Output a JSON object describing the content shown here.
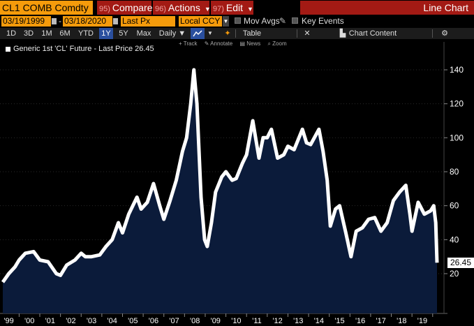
{
  "toolbar": {
    "ticker": "CL1 COMB Comdty",
    "compare_num": "95)",
    "compare": "Compare",
    "actions_num": "96)",
    "actions": "Actions",
    "edit_num": "97)",
    "edit": "Edit",
    "view_title": "Line Chart"
  },
  "range": {
    "start": "03/19/1999",
    "end": "03/18/2020",
    "field": "Last Px",
    "currency": "Local CCY",
    "mov_avgs": "Mov Avgs",
    "key_events": "Key Events"
  },
  "periods": [
    "1D",
    "3D",
    "1M",
    "6M",
    "YTD",
    "1Y",
    "5Y",
    "Max"
  ],
  "selected_period": "1Y",
  "frequency": "Daily ▼",
  "table_label": "Table",
  "chart_content_label": "Chart Content",
  "tools": [
    "Track",
    "Annotate",
    "News",
    "Zoom"
  ],
  "legend": "Generic 1st 'CL' Future - Last Price 26.45",
  "last_price": "26.45",
  "colors": {
    "accent": "#f59b0b",
    "menu": "#a31a14",
    "area": "#0b1b3a",
    "line": "#ffffff"
  },
  "chart_data": {
    "type": "area",
    "title": "Generic 1st 'CL' Future - Last Price",
    "ylim": [
      0,
      155
    ],
    "yticks": [
      20,
      40,
      60,
      80,
      100,
      120,
      140
    ],
    "xlim": [
      1999.21,
      2020.21
    ],
    "xticks": [
      "'99",
      "'00",
      "'01",
      "'02",
      "'03",
      "'04",
      "'05",
      "'06",
      "'07",
      "'08",
      "'09",
      "'10",
      "'11",
      "'12",
      "'13",
      "'14",
      "'15",
      "'16",
      "'17",
      "'18",
      "'19"
    ],
    "x": [
      1999.21,
      1999.5,
      1999.8,
      2000.0,
      2000.3,
      2000.7,
      2001.0,
      2001.4,
      2001.8,
      2002.0,
      2002.3,
      2002.7,
      2003.0,
      2003.2,
      2003.5,
      2003.9,
      2004.2,
      2004.5,
      2004.8,
      2005.0,
      2005.3,
      2005.7,
      2005.9,
      2006.2,
      2006.5,
      2006.8,
      2007.0,
      2007.3,
      2007.6,
      2007.9,
      2008.1,
      2008.3,
      2008.45,
      2008.6,
      2008.8,
      2008.97,
      2009.1,
      2009.3,
      2009.5,
      2009.8,
      2010.0,
      2010.3,
      2010.5,
      2010.8,
      2011.0,
      2011.3,
      2011.6,
      2011.8,
      2012.0,
      2012.2,
      2012.5,
      2012.8,
      2013.0,
      2013.3,
      2013.7,
      2013.9,
      2014.1,
      2014.5,
      2014.7,
      2014.9,
      2015.05,
      2015.3,
      2015.5,
      2015.8,
      2016.05,
      2016.3,
      2016.6,
      2016.9,
      2017.2,
      2017.5,
      2017.8,
      2018.1,
      2018.4,
      2018.7,
      2018.9,
      2019.0,
      2019.3,
      2019.6,
      2019.9,
      2020.05,
      2020.15,
      2020.21
    ],
    "values": [
      15,
      20,
      24,
      28,
      32,
      33,
      28,
      27,
      20,
      19,
      25,
      28,
      32,
      30,
      30,
      31,
      36,
      40,
      50,
      44,
      55,
      65,
      58,
      62,
      73,
      60,
      52,
      63,
      75,
      92,
      100,
      120,
      140,
      120,
      65,
      40,
      36,
      50,
      68,
      77,
      80,
      75,
      76,
      85,
      90,
      110,
      88,
      100,
      100,
      105,
      88,
      90,
      95,
      93,
      105,
      97,
      96,
      105,
      92,
      75,
      48,
      58,
      60,
      44,
      30,
      45,
      47,
      52,
      53,
      45,
      50,
      63,
      68,
      72,
      55,
      45,
      62,
      55,
      57,
      60,
      50,
      26.45
    ],
    "series": [
      {
        "name": "Generic 1st 'CL' Future - Last Price",
        "last": 26.45
      }
    ]
  }
}
